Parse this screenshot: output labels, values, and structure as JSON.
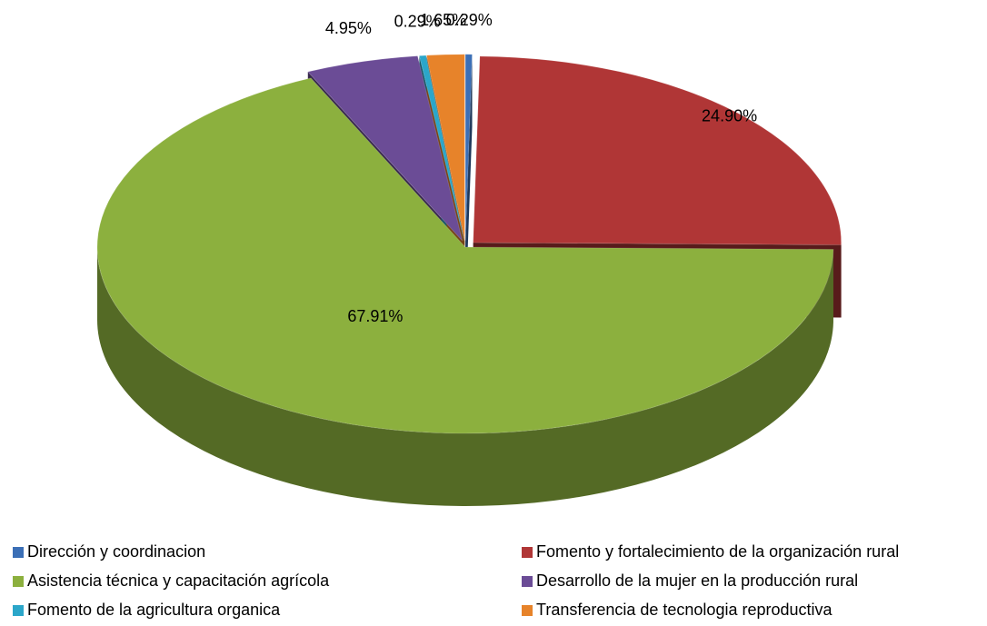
{
  "chart_data": {
    "type": "pie3d",
    "categories": [
      "Dirección y coordinacion",
      "Fomento y fortalecimiento de la organización rural",
      "Asistencia técnica y capacitación agrícola",
      "Desarrollo de la mujer en la producción rural",
      "Fomento de la agricultura organica",
      "Transferencia de tecnologia reproductiva"
    ],
    "values": [
      0.29,
      24.9,
      67.91,
      4.95,
      0.29,
      1.65
    ],
    "value_labels": [
      "0.29%",
      "24.90%",
      "67.91%",
      "4.95%",
      "0.29%",
      "1.65%"
    ],
    "colors": [
      "#3b6fb6",
      "#b03636",
      "#8cb03e",
      "#6b4c96",
      "#2ba6c9",
      "#e7832a"
    ],
    "legend": "bottom"
  }
}
